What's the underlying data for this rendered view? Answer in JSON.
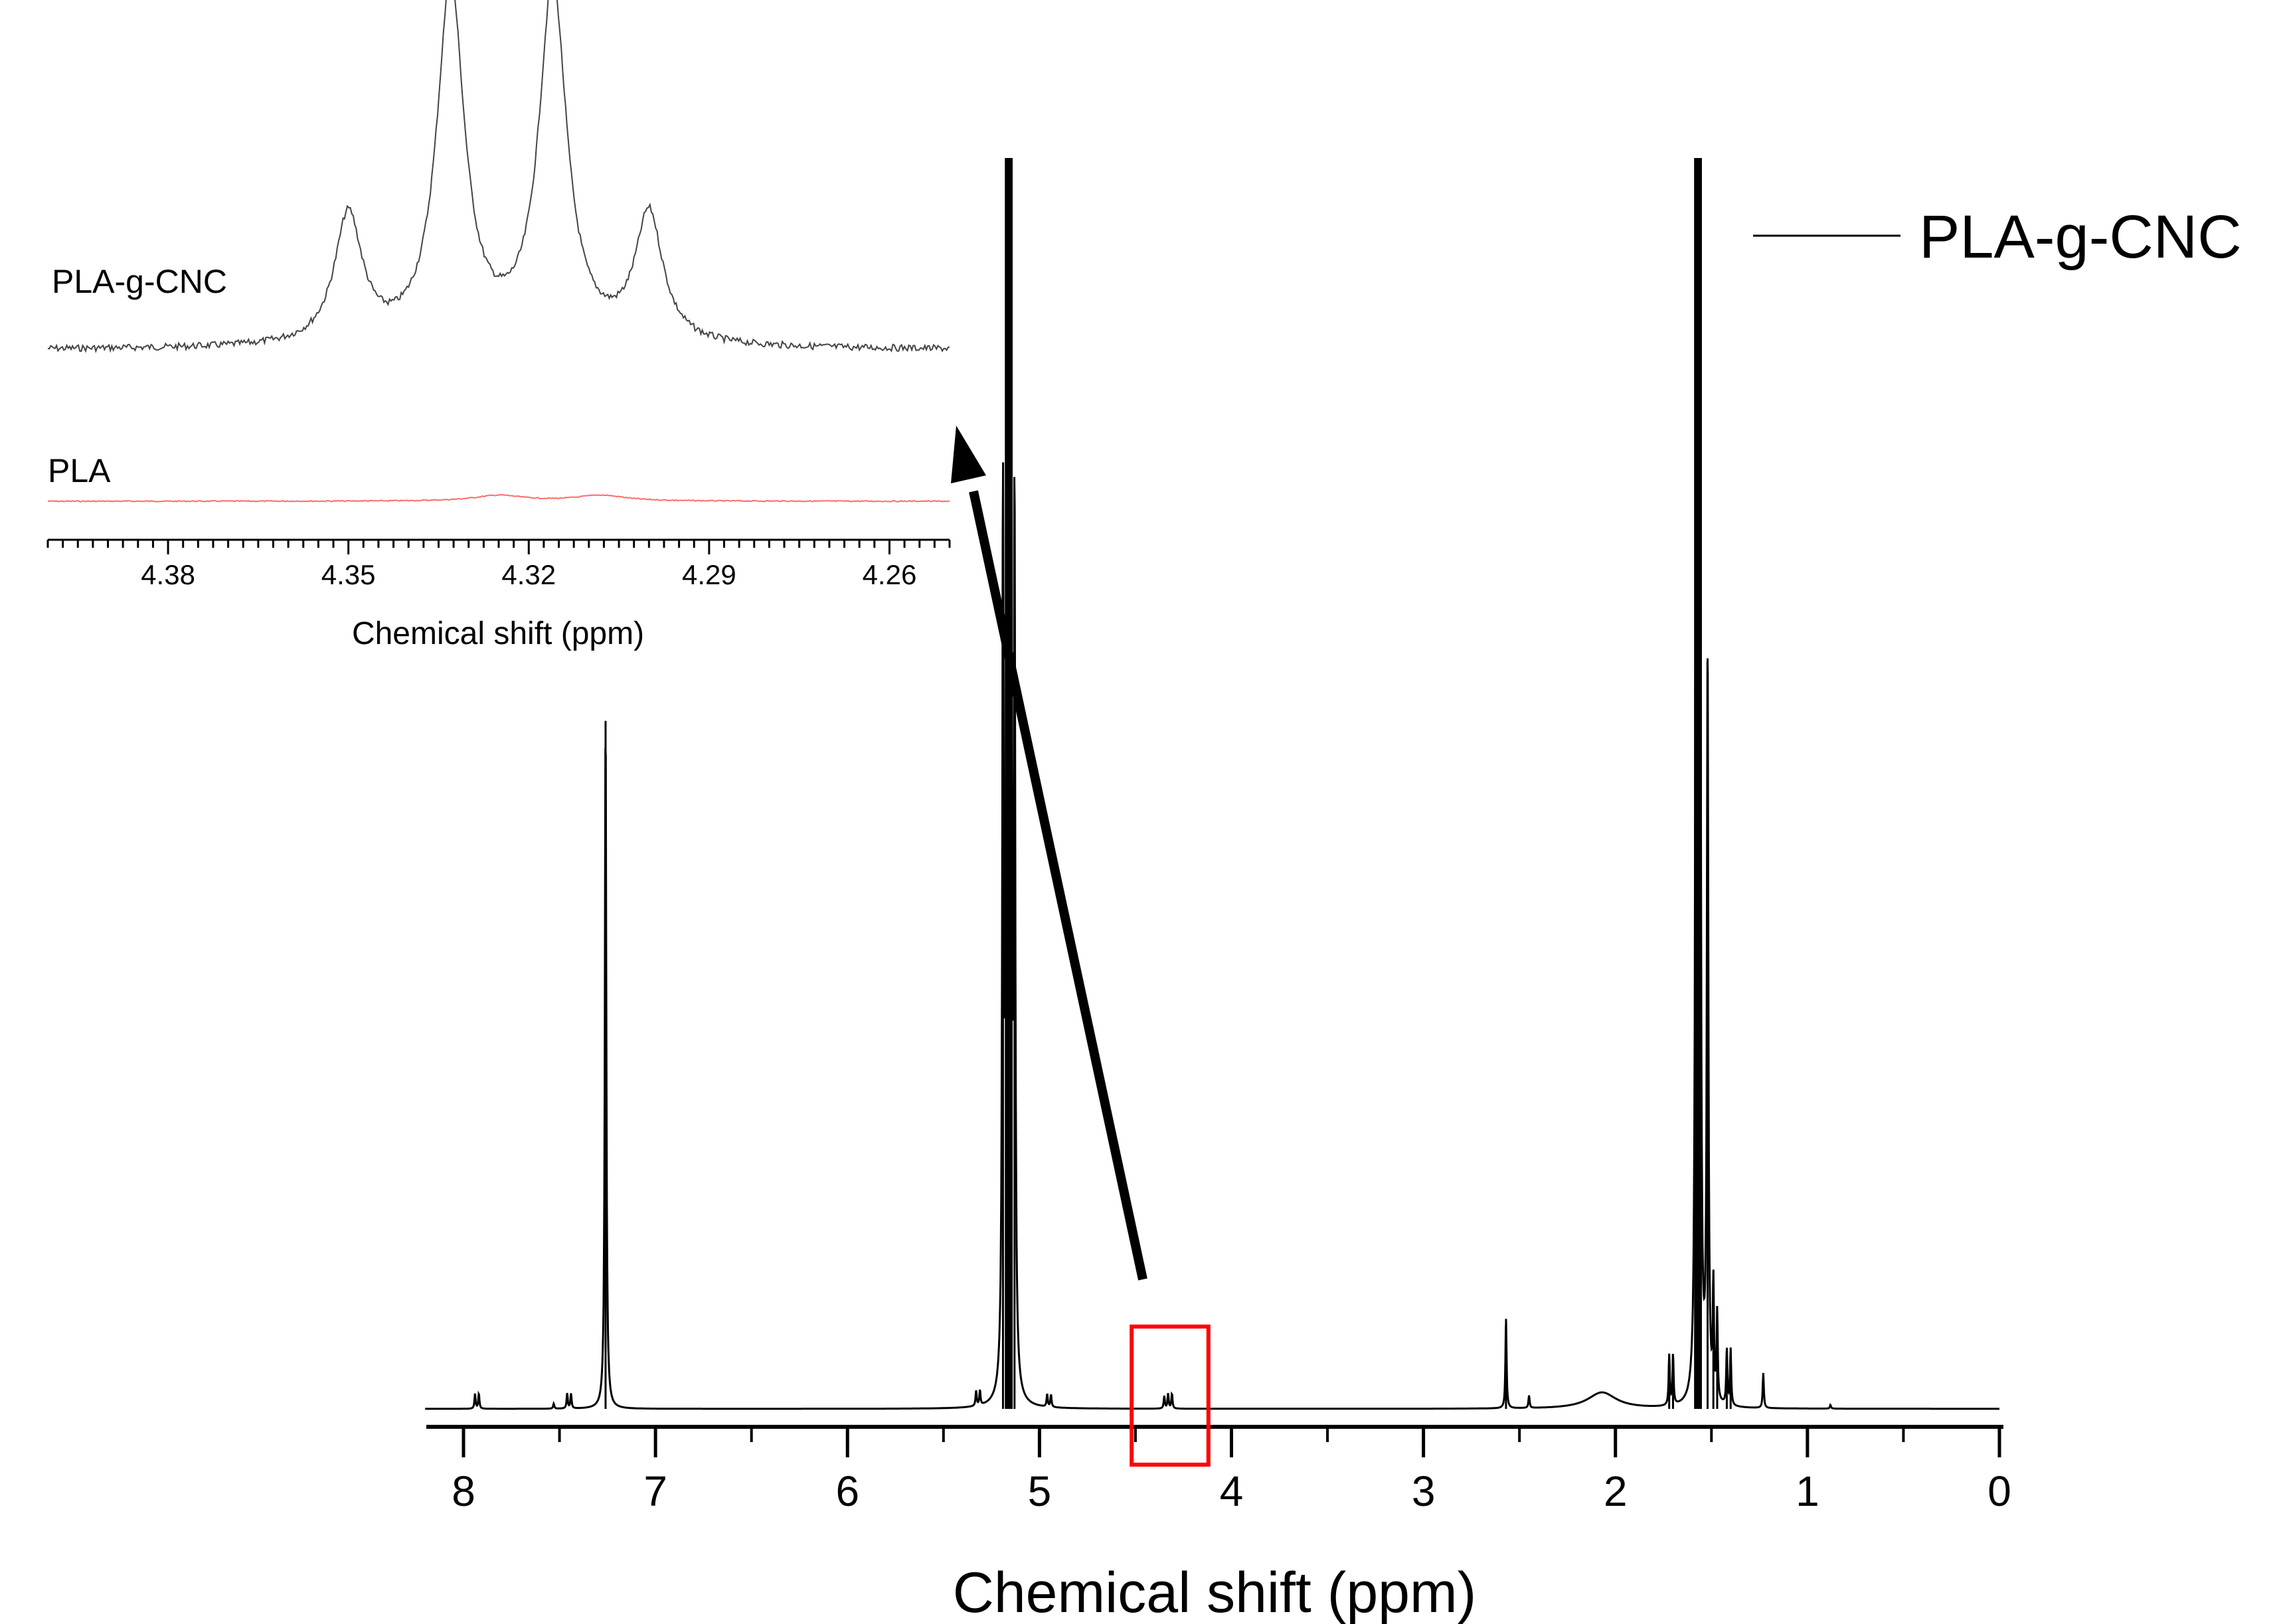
{
  "chart_data": [
    {
      "type": "line",
      "panel": "main",
      "xlabel": "Chemical shift (ppm)",
      "ylabel": "",
      "xlim": [
        8.2,
        0
      ],
      "x_reversed": true,
      "grid": false,
      "legend_position": "top-right",
      "xticks": [
        8,
        7,
        6,
        5,
        4,
        3,
        2,
        1,
        0
      ],
      "xtick_labels": [
        "8",
        "7",
        "6",
        "5",
        "4",
        "3",
        "2",
        "1",
        "0"
      ],
      "series": [
        {
          "name": "PLA-g-CNC",
          "color": "#000000",
          "baseline": 0,
          "ylim": [
            0,
            1
          ],
          "peaks": [
            {
              "x": 7.94,
              "y": 0.012
            },
            {
              "x": 7.92,
              "y": 0.012
            },
            {
              "x": 7.53,
              "y": 0.004
            },
            {
              "x": 7.46,
              "y": 0.012
            },
            {
              "x": 7.44,
              "y": 0.012
            },
            {
              "x": 7.26,
              "y": 0.55
            },
            {
              "x": 5.33,
              "y": 0.012
            },
            {
              "x": 5.31,
              "y": 0.012
            },
            {
              "x": 5.19,
              "y": 0.7
            },
            {
              "x": 5.17,
              "y": 1.0
            },
            {
              "x": 5.15,
              "y": 1.0
            },
            {
              "x": 5.13,
              "y": 0.7
            },
            {
              "x": 4.96,
              "y": 0.01
            },
            {
              "x": 4.94,
              "y": 0.01
            },
            {
              "x": 4.35,
              "y": 0.01
            },
            {
              "x": 4.33,
              "y": 0.012
            },
            {
              "x": 4.31,
              "y": 0.012
            },
            {
              "x": 2.57,
              "y": 0.072
            },
            {
              "x": 2.45,
              "y": 0.01
            },
            {
              "x": 2.07,
              "y": 0.013
            },
            {
              "x": 1.72,
              "y": 0.04
            },
            {
              "x": 1.7,
              "y": 0.04
            },
            {
              "x": 1.58,
              "y": 1.0
            },
            {
              "x": 1.56,
              "y": 1.0
            },
            {
              "x": 1.52,
              "y": 0.6
            },
            {
              "x": 1.49,
              "y": 0.09
            },
            {
              "x": 1.47,
              "y": 0.07
            },
            {
              "x": 1.42,
              "y": 0.045
            },
            {
              "x": 1.4,
              "y": 0.045
            },
            {
              "x": 1.23,
              "y": 0.028
            },
            {
              "x": 0.88,
              "y": 0.003
            }
          ]
        }
      ],
      "highlight_box": {
        "x_range": [
          4.52,
          4.12
        ],
        "color": "#ff0000"
      },
      "annotation_arrow": {
        "from_x": 4.5,
        "color": "#000000"
      }
    },
    {
      "type": "line",
      "panel": "inset",
      "xlabel": "Chemical shift (ppm)",
      "ylabel": "",
      "xlim": [
        4.4,
        4.25
      ],
      "x_reversed": true,
      "grid": false,
      "xticks": [
        4.38,
        4.35,
        4.32,
        4.29,
        4.26
      ],
      "xtick_labels": [
        "4.38",
        "4.35",
        "4.32",
        "4.29",
        "4.26"
      ],
      "series": [
        {
          "name": "PLA-g-CNC",
          "color": "#444444",
          "ylim": [
            0,
            1
          ],
          "baseline": 0.05,
          "peaks": [
            {
              "x": 4.35,
              "y": 0.36
            },
            {
              "x": 4.333,
              "y": 1.0
            },
            {
              "x": 4.316,
              "y": 1.0
            },
            {
              "x": 4.3,
              "y": 0.36
            }
          ]
        },
        {
          "name": "PLA",
          "color": "#ff6b6b",
          "ylim": [
            0,
            1
          ],
          "baseline": 0.0,
          "peaks": [
            {
              "x": 4.325,
              "y": 0.02
            },
            {
              "x": 4.308,
              "y": 0.02
            }
          ]
        }
      ]
    }
  ]
}
